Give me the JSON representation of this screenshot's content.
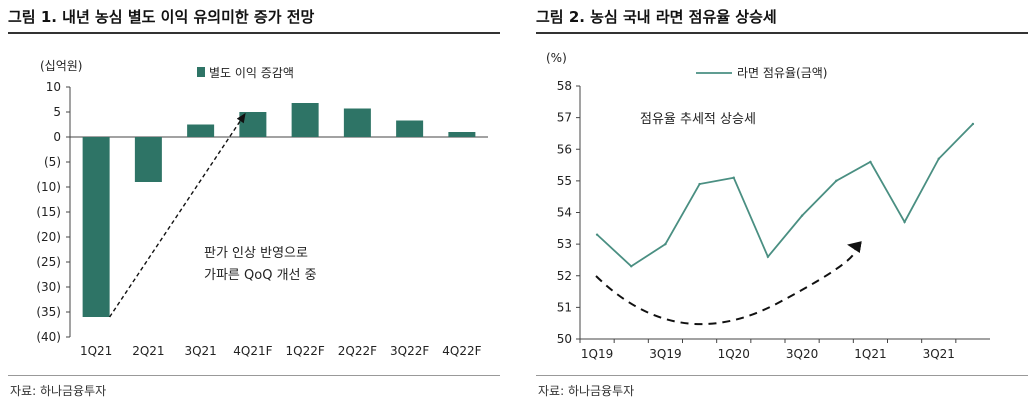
{
  "left": {
    "title": "그림 1. 내년 농심 별도 이익 유의미한 증가 전망",
    "source": "자료: 하나금융투자",
    "chart_data": {
      "type": "bar",
      "unit_label": "(십억원)",
      "categories": [
        "1Q21",
        "2Q21",
        "3Q21",
        "4Q21F",
        "1Q22F",
        "2Q22F",
        "3Q22F",
        "4Q22F"
      ],
      "series": [
        {
          "name": "별도 이익 증감액",
          "values": [
            -36,
            -9,
            2.5,
            5,
            6.8,
            5.7,
            3.3,
            1
          ]
        }
      ],
      "ylim": [
        -40,
        10
      ],
      "ytick_labels": [
        "10",
        "5",
        "0",
        "(5)",
        "(10)",
        "(15)",
        "(20)",
        "(25)",
        "(30)",
        "(35)",
        "(40)"
      ],
      "legend": "top",
      "annotation": [
        "판가 인상 반영으로",
        "가파른 QoQ 개선 중"
      ],
      "color": "#2e7466"
    }
  },
  "right": {
    "title": "그림 2. 농심 국내 라면 점유율 상승세",
    "source": "자료: 하나금융투자",
    "chart_data": {
      "type": "line",
      "unit_label": "(%)",
      "x": [
        "1Q19",
        "2Q19",
        "3Q19",
        "4Q19",
        "1Q20",
        "2Q20",
        "3Q20",
        "4Q20",
        "1Q21",
        "2Q21",
        "3Q21",
        "4Q21"
      ],
      "xtick_labels": [
        "1Q19",
        "",
        "3Q19",
        "",
        "1Q20",
        "",
        "3Q20",
        "",
        "1Q21",
        "",
        "3Q21",
        ""
      ],
      "series": [
        {
          "name": "라면 점유율(금액)",
          "values": [
            53.3,
            52.3,
            53.0,
            54.9,
            55.1,
            52.6,
            53.9,
            55.0,
            55.6,
            53.7,
            55.7,
            56.8
          ]
        }
      ],
      "ylim": [
        50,
        58
      ],
      "yticks": [
        50,
        51,
        52,
        53,
        54,
        55,
        56,
        57,
        58
      ],
      "legend": "top",
      "annotation": "점유율 추세적 상승세",
      "color": "#4a8f82"
    }
  }
}
